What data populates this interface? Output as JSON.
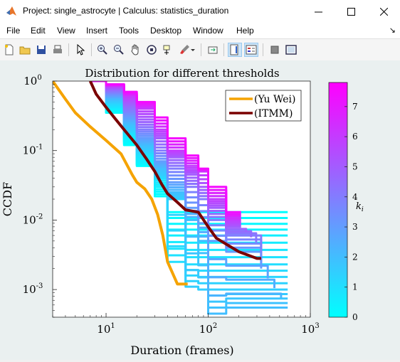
{
  "window": {
    "title": "Project: single_astrocyte | Calculus: statistics_duration"
  },
  "menu": [
    "File",
    "Edit",
    "View",
    "Insert",
    "Tools",
    "Desktop",
    "Window",
    "Help"
  ],
  "toolbar": {
    "icons": [
      "new-figure-icon",
      "open-file-icon",
      "save-icon",
      "print-icon",
      "pointer-icon",
      "zoom-in-icon",
      "zoom-out-icon",
      "pan-icon",
      "rotate-3d-icon",
      "data-cursor-icon",
      "brush-icon",
      "link-data-icon",
      "colorbar-icon",
      "legend-icon",
      "hide-plot-tools-icon",
      "show-plot-tools-icon"
    ]
  },
  "chart_data": {
    "type": "line",
    "title": "Distribution for different thresholds",
    "xlabel": "Duration (frames)",
    "ylabel": "CCDF",
    "xscale": "log",
    "yscale": "log",
    "xlim": [
      3,
      1000
    ],
    "ylim": [
      0.0004,
      1
    ],
    "xticklabels": [
      "10^1",
      "10^2",
      "10^3"
    ],
    "yticklabels": [
      "10^0",
      "10^-1",
      "10^-2",
      "10^-3"
    ],
    "grid": false,
    "legend": {
      "position": "top-right",
      "entries": [
        "(Yu Wei)",
        "(ITMM)"
      ]
    },
    "colors": {
      "yuwei": "#f5a300",
      "itmm": "#7a0000",
      "cmap_low": "#00ffff",
      "cmap_high": "#ff00ff"
    },
    "series": [
      {
        "name": "(Yu Wei)",
        "color": "#f5a300",
        "x": [
          3,
          4,
          5,
          7,
          10,
          14,
          18,
          20,
          24,
          28,
          32,
          36,
          40,
          50,
          60,
          63
        ],
        "y": [
          1,
          0.55,
          0.35,
          0.22,
          0.14,
          0.09,
          0.045,
          0.035,
          0.028,
          0.02,
          0.012,
          0.006,
          0.0025,
          0.0012,
          0.0012,
          0.0012
        ]
      },
      {
        "name": "(ITMM)",
        "color": "#7a0000",
        "x": [
          7,
          8,
          10,
          12,
          15,
          20,
          25,
          30,
          35,
          40,
          50,
          60,
          80,
          100,
          120,
          150,
          200,
          300,
          330
        ],
        "y": [
          1,
          0.65,
          0.42,
          0.3,
          0.2,
          0.12,
          0.075,
          0.05,
          0.033,
          0.024,
          0.018,
          0.014,
          0.013,
          0.008,
          0.0055,
          0.0045,
          0.0035,
          0.0028,
          0.0028
        ]
      }
    ],
    "threshold_curves": [
      {
        "k": 0,
        "x": [
          7,
          10,
          15,
          20,
          30,
          40,
          60,
          80,
          100,
          150,
          600
        ],
        "y": [
          1,
          0.35,
          0.12,
          0.06,
          0.022,
          0.013,
          0.013,
          0.013,
          0.013,
          0.013,
          0.013
        ]
      },
      {
        "k": 0.5,
        "x": [
          7,
          10,
          15,
          20,
          30,
          40,
          60,
          80,
          100,
          150,
          600
        ],
        "y": [
          1,
          0.4,
          0.15,
          0.07,
          0.03,
          0.006,
          0.006,
          0.006,
          0.006,
          0.006,
          0.006
        ]
      },
      {
        "k": 1,
        "x": [
          7,
          10,
          15,
          20,
          30,
          40,
          60,
          80,
          100,
          150,
          600
        ],
        "y": [
          1,
          0.45,
          0.18,
          0.09,
          0.04,
          0.0025,
          0.0023,
          0.0023,
          0.0023,
          0.0023,
          0.0023
        ]
      },
      {
        "k": 1.5,
        "x": [
          7,
          10,
          15,
          20,
          30,
          40,
          60,
          80,
          100,
          150,
          600
        ],
        "y": [
          1,
          0.5,
          0.2,
          0.1,
          0.045,
          0.02,
          0.0011,
          0.001,
          0.001,
          0.001,
          0.001
        ]
      },
      {
        "k": 2,
        "x": [
          7,
          10,
          15,
          20,
          30,
          40,
          60,
          80,
          100,
          150,
          600
        ],
        "y": [
          1,
          0.55,
          0.24,
          0.12,
          0.055,
          0.025,
          0.01,
          0.005,
          0.00045,
          0.00055,
          0.00055
        ]
      },
      {
        "k": 3,
        "x": [
          7,
          10,
          15,
          20,
          30,
          40,
          60,
          80,
          100,
          150,
          330
        ],
        "y": [
          1,
          0.62,
          0.3,
          0.15,
          0.07,
          0.035,
          0.015,
          0.009,
          0.005,
          0.0035,
          0.002
        ]
      },
      {
        "k": 4,
        "x": [
          7,
          10,
          15,
          20,
          30,
          40,
          60,
          80,
          100,
          150,
          330
        ],
        "y": [
          1,
          0.7,
          0.38,
          0.2,
          0.1,
          0.055,
          0.03,
          0.02,
          0.01,
          0.006,
          0.004
        ]
      },
      {
        "k": 5,
        "x": [
          7,
          10,
          15,
          20,
          30,
          40,
          60,
          80,
          100,
          150,
          210
        ],
        "y": [
          1,
          0.78,
          0.48,
          0.28,
          0.15,
          0.08,
          0.045,
          0.03,
          0.015,
          0.008,
          0.008
        ]
      },
      {
        "k": 6,
        "x": [
          7,
          10,
          15,
          20,
          30,
          40,
          60,
          80,
          100,
          150,
          210
        ],
        "y": [
          1,
          0.85,
          0.6,
          0.4,
          0.2,
          0.1,
          0.06,
          0.05,
          0.02,
          0.01,
          0.01
        ]
      },
      {
        "k": 7.5,
        "x": [
          7,
          10,
          15,
          20,
          30,
          40,
          60,
          80,
          100,
          150,
          210
        ],
        "y": [
          1,
          0.9,
          0.7,
          0.5,
          0.3,
          0.15,
          0.085,
          0.055,
          0.03,
          0.013,
          0.013
        ]
      }
    ],
    "colorbar": {
      "label": "k_i",
      "ticks": [
        0,
        1,
        2,
        3,
        4,
        5,
        6,
        7
      ],
      "range": [
        0,
        7.8
      ]
    }
  }
}
